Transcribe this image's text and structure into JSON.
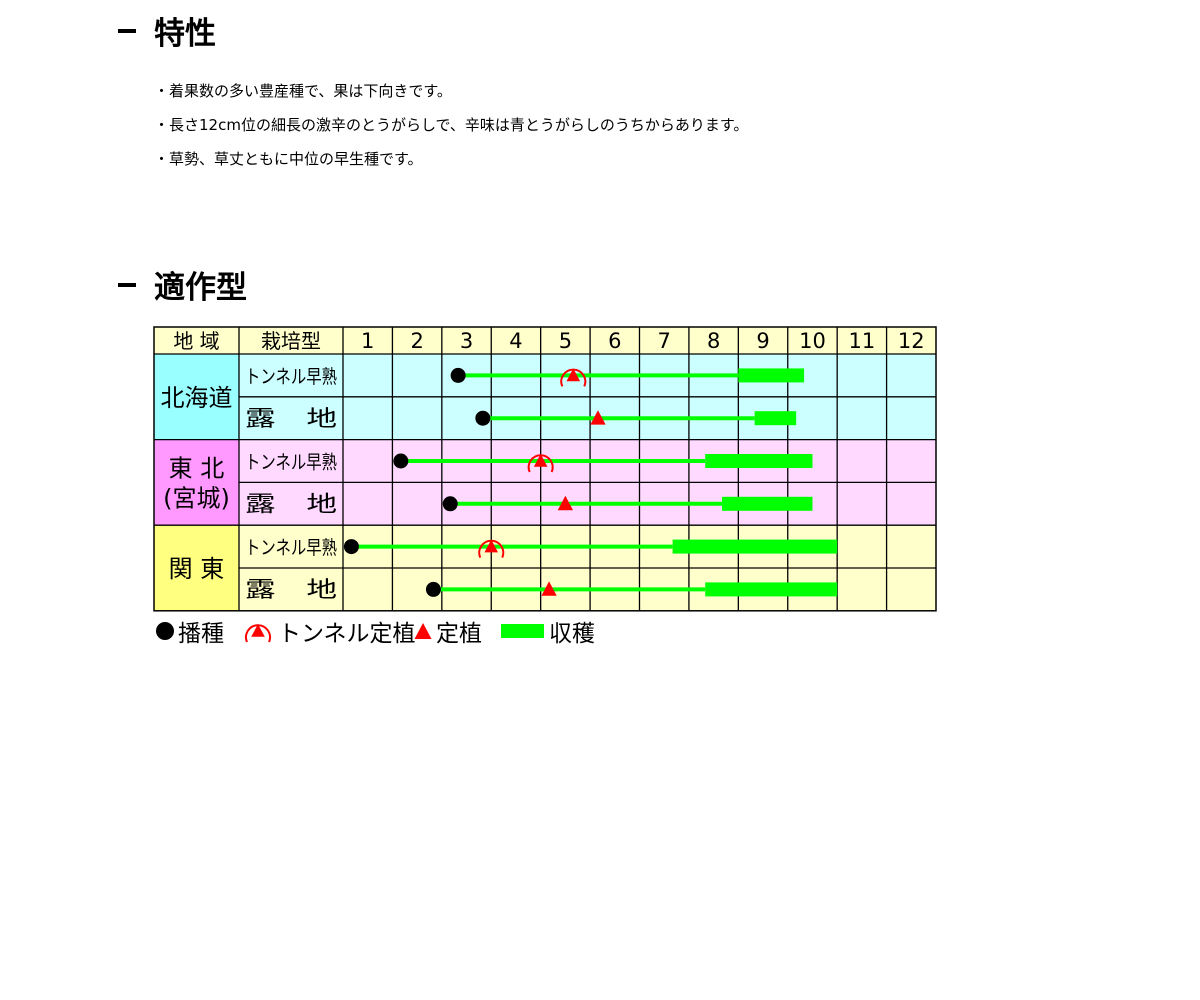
{
  "section1": {
    "title": "特性",
    "bullets": [
      "・着果数の多い豊産種で、果は下向きです。",
      "・長さ12cm位の細長の激辛のとうがらしで、辛味は青とうがらしのうちからあります。",
      "・草勢、草丈ともに中位の早生種です。"
    ]
  },
  "section2": {
    "title": "適作型"
  },
  "chart_data": {
    "type": "table",
    "header": {
      "region": "地 域",
      "type": "栽培型"
    },
    "months": [
      "1",
      "2",
      "3",
      "4",
      "5",
      "6",
      "7",
      "8",
      "9",
      "10",
      "11",
      "12"
    ],
    "regions": [
      {
        "name": "北海道",
        "color": "#ccffff"
      },
      {
        "name": "東 北\n(宮城)",
        "color": "#ffd9ff"
      },
      {
        "name": "関 東",
        "color": "#ffffcc"
      }
    ],
    "region_label_colors": [
      "#99ffff",
      "#ff99ff",
      "#ffff80"
    ],
    "header_color": "#ffffcc",
    "rows": [
      {
        "region": 0,
        "type": "トンネル早熟",
        "sow": 3.33,
        "plant": 5.66,
        "tunnel": true,
        "harvest": [
          9.0,
          10.33
        ]
      },
      {
        "region": 0,
        "type": "露　地",
        "sow": 3.83,
        "plant": 6.16,
        "tunnel": false,
        "harvest": [
          9.33,
          10.17
        ]
      },
      {
        "region": 1,
        "type": "トンネル早熟",
        "sow": 2.17,
        "plant": 5.0,
        "tunnel": true,
        "harvest": [
          8.33,
          10.5
        ]
      },
      {
        "region": 1,
        "type": "露　地",
        "sow": 3.17,
        "plant": 5.5,
        "tunnel": false,
        "harvest": [
          8.67,
          10.5
        ]
      },
      {
        "region": 2,
        "type": "トンネル早熟",
        "sow": 1.17,
        "plant": 4.0,
        "tunnel": true,
        "harvest": [
          7.67,
          11.0
        ]
      },
      {
        "region": 2,
        "type": "露　地",
        "sow": 2.83,
        "plant": 5.17,
        "tunnel": false,
        "harvest": [
          8.33,
          11.0
        ]
      }
    ],
    "legend": {
      "sow": "播種",
      "tunnel_plant": "トンネル定植",
      "plant": "定植",
      "harvest": "収穫"
    },
    "colors": {
      "line": "#00ff00",
      "marker": "#ff0000",
      "sow": "#000000"
    }
  }
}
